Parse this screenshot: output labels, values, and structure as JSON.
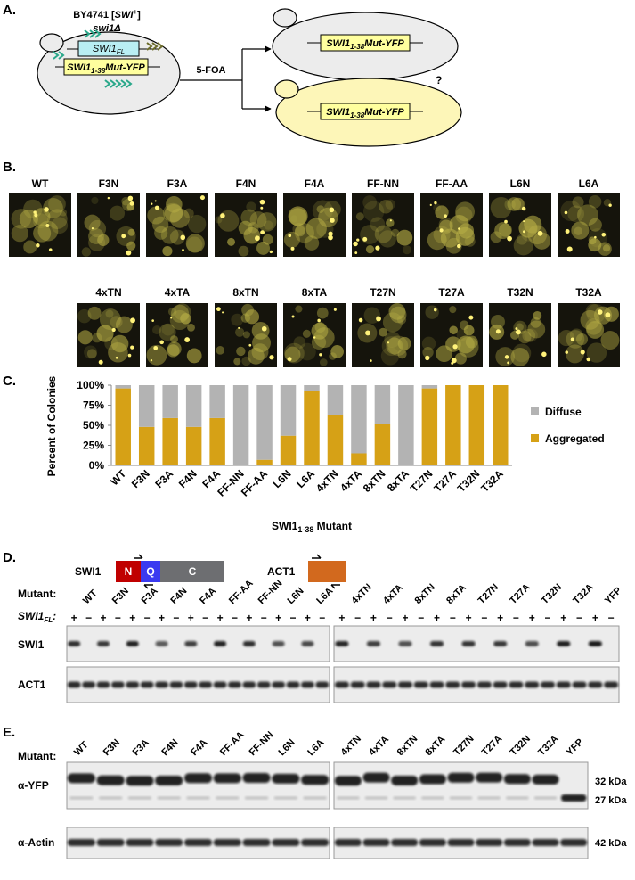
{
  "panel_a": {
    "label": "A.",
    "strain": {
      "name": "BY4741 [",
      "gene": "SWI",
      "sup": "+",
      "end": "]"
    },
    "deletion": "swi1Δ",
    "plasmid_fl": {
      "main": "SWI1",
      "sub": "FL"
    },
    "plasmid_mut": {
      "main": "SWI1",
      "sub": "1-38",
      "rest": "Mut-YFP"
    },
    "selection": "5-FOA",
    "question": "?"
  },
  "panel_b": {
    "label": "B.",
    "row1": [
      "WT",
      "F3N",
      "F3A",
      "F4N",
      "F4A",
      "FF-NN",
      "FF-AA",
      "L6N",
      "L6A"
    ],
    "row2": [
      "4xTN",
      "4xTA",
      "8xTN",
      "8xTA",
      "T27N",
      "T27A",
      "T32N",
      "T32A"
    ]
  },
  "chart_data": {
    "type": "bar",
    "stacked": true,
    "panel_label": "C.",
    "y_label": "Percent of Colonies",
    "x_label": {
      "main": "SWI1",
      "sub": "1-38",
      "rest": " Mutant"
    },
    "categories": [
      "WT",
      "F3N",
      "F3A",
      "F4N",
      "F4A",
      "FF-NN",
      "FF-AA",
      "L6N",
      "L6A",
      "4xTN",
      "4xTA",
      "8xTN",
      "8xTA",
      "T27N",
      "T27A",
      "T32N",
      "T32A"
    ],
    "series": [
      {
        "name": "Diffuse",
        "color": "#b3b3b3",
        "values": [
          4,
          52,
          41,
          52,
          41,
          100,
          93,
          63,
          7,
          37,
          85,
          48,
          100,
          4,
          0,
          0,
          0
        ]
      },
      {
        "name": "Aggregated",
        "color": "#d6a116",
        "values": [
          96,
          48,
          59,
          48,
          59,
          0,
          7,
          37,
          93,
          63,
          15,
          52,
          0,
          96,
          100,
          100,
          100
        ]
      }
    ],
    "ylim": [
      0,
      100
    ],
    "yticks": [
      {
        "value": 0,
        "label": "0%"
      },
      {
        "value": 25,
        "label": "25%"
      },
      {
        "value": 50,
        "label": "50%"
      },
      {
        "value": 75,
        "label": "75%"
      },
      {
        "value": 100,
        "label": "100%"
      }
    ],
    "legend": "right"
  },
  "panel_d": {
    "label": "D.",
    "schematic": {
      "gene": "SWI1",
      "domains": [
        "N",
        "Q",
        "C"
      ],
      "control": "ACT1"
    },
    "mutant_label": "Mutant:",
    "lanes_left": [
      "WT",
      "F3N",
      "F3A",
      "F4N",
      "F4A",
      "FF-AA",
      "FF-NN",
      "L6N",
      "L6A"
    ],
    "lanes_right": [
      "4xTN",
      "4xTA",
      "8xTN",
      "8xTA",
      "T27N",
      "T27A",
      "T32N",
      "T32A",
      "YFP"
    ],
    "fl_label": {
      "main": "SWI1",
      "sub": "FL",
      "rest": ":"
    },
    "signs_left": [
      "+",
      "−",
      "+",
      "−",
      "+",
      "−",
      "+",
      "−",
      "+",
      "−",
      "+",
      "−",
      "+",
      "−",
      "+",
      "−",
      "+",
      "−"
    ],
    "signs_right": [
      "+",
      "−",
      "+",
      "−",
      "+",
      "−",
      "+",
      "−",
      "+",
      "−",
      "+",
      "−",
      "+",
      "−",
      "+",
      "−",
      "+",
      "−"
    ],
    "rows": [
      "SWI1",
      "ACT1"
    ]
  },
  "panel_e": {
    "label": "E.",
    "mutant_label": "Mutant:",
    "lanes_left": [
      "WT",
      "F3N",
      "F3A",
      "F4N",
      "F4A",
      "FF-AA",
      "FF-NN",
      "L6N",
      "L6A"
    ],
    "lanes_right": [
      "4xTN",
      "4xTA",
      "8xTN",
      "8xTA",
      "T27N",
      "T27A",
      "T32N",
      "T32A",
      "YFP"
    ],
    "rows": [
      "α-YFP",
      "α-Actin"
    ],
    "markers": [
      "32 kDa",
      "27 kDa",
      "42 kDa"
    ]
  }
}
